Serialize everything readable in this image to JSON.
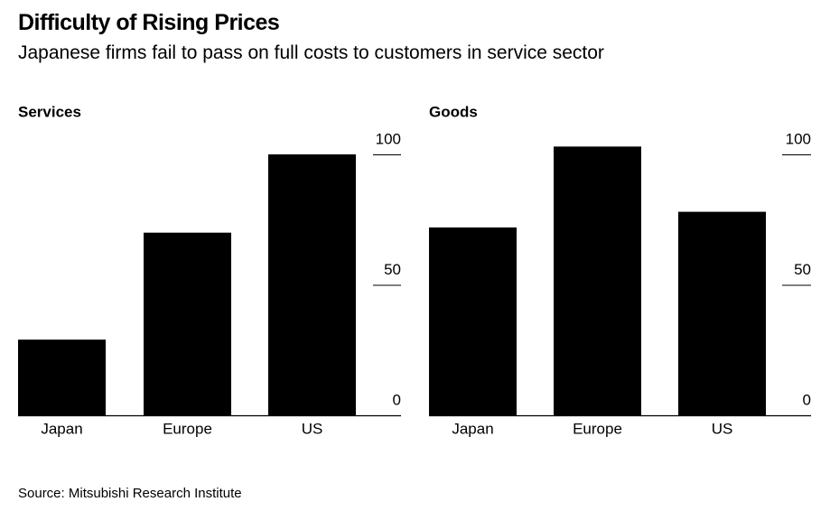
{
  "header": {
    "title": "Difficulty of Rising Prices",
    "subtitle": "Japanese firms fail to pass on full costs to customers in service sector"
  },
  "footer": {
    "source": "Source: Mitsubishi Research Institute"
  },
  "colors": {
    "bar": "#000000",
    "axis": "#000000",
    "background": "#ffffff"
  },
  "chart_data": [
    {
      "type": "bar",
      "title": "Services",
      "categories": [
        "Japan",
        "Europe",
        "US"
      ],
      "values": [
        29,
        70,
        100
      ],
      "ylim": [
        0,
        100
      ],
      "yticks": [
        0,
        50,
        100
      ],
      "xlabel": "",
      "ylabel": "",
      "grid": false,
      "y_axis_position": "right"
    },
    {
      "type": "bar",
      "title": "Goods",
      "categories": [
        "Japan",
        "Europe",
        "US"
      ],
      "values": [
        72,
        103,
        78
      ],
      "ylim": [
        0,
        100
      ],
      "yticks": [
        0,
        50,
        100
      ],
      "xlabel": "",
      "ylabel": "",
      "grid": false,
      "y_axis_position": "right"
    }
  ]
}
